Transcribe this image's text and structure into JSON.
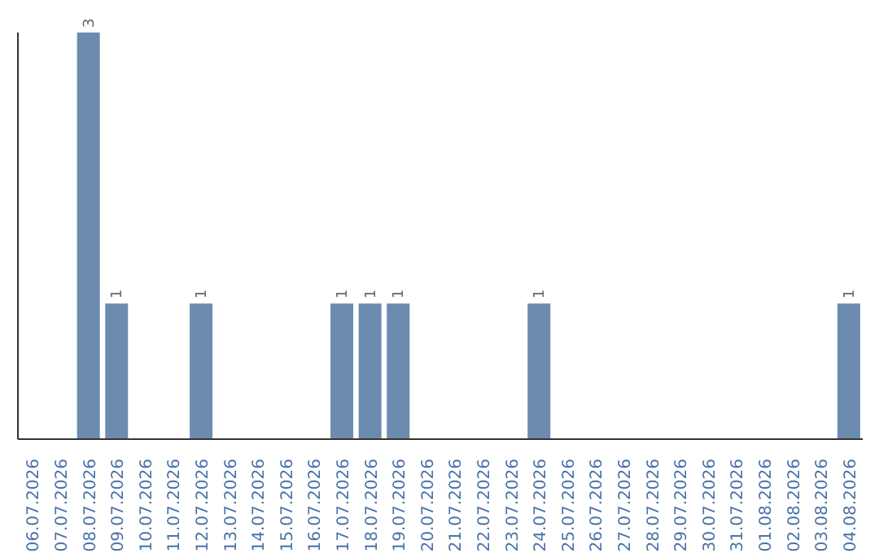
{
  "chart_data": {
    "type": "bar",
    "categories": [
      "06.07.2026",
      "07.07.2026",
      "08.07.2026",
      "09.07.2026",
      "10.07.2026",
      "11.07.2026",
      "12.07.2026",
      "13.07.2026",
      "14.07.2026",
      "15.07.2026",
      "16.07.2026",
      "17.07.2026",
      "18.07.2026",
      "19.07.2026",
      "20.07.2026",
      "21.07.2026",
      "22.07.2026",
      "23.07.2026",
      "24.07.2026",
      "25.07.2026",
      "26.07.2026",
      "27.07.2026",
      "28.07.2026",
      "29.07.2026",
      "30.07.2026",
      "31.07.2026",
      "01.08.2026",
      "02.08.2026",
      "03.08.2026",
      "04.08.2026"
    ],
    "values": [
      0,
      0,
      3,
      1,
      0,
      0,
      1,
      0,
      0,
      0,
      0,
      1,
      1,
      1,
      0,
      0,
      0,
      0,
      1,
      0,
      0,
      0,
      0,
      0,
      0,
      0,
      0,
      0,
      0,
      1
    ],
    "value_labels": [
      null,
      null,
      "3",
      "1",
      null,
      null,
      "1",
      null,
      null,
      null,
      null,
      "1",
      "1",
      "1",
      null,
      null,
      null,
      null,
      "1",
      null,
      null,
      null,
      null,
      null,
      null,
      null,
      null,
      null,
      null,
      "1"
    ],
    "color": "#6b8cae"
  }
}
